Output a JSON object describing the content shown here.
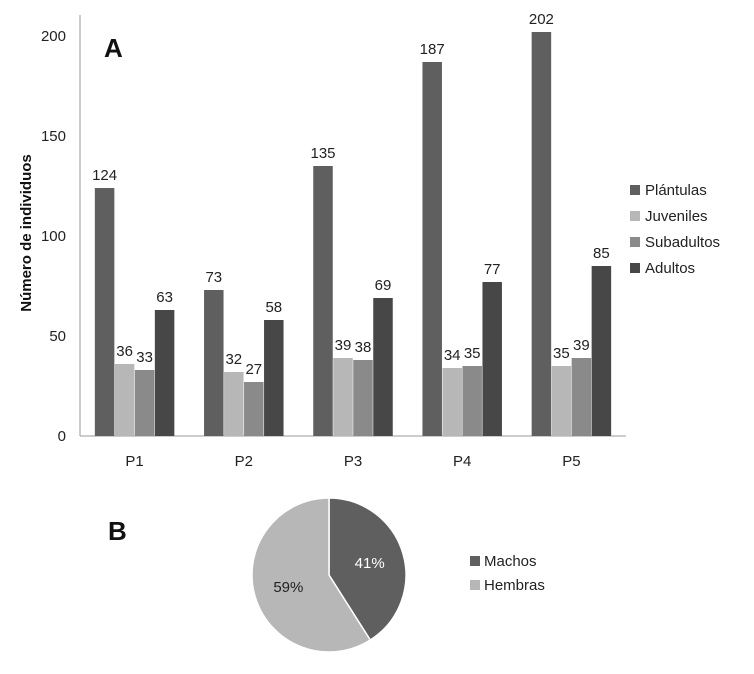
{
  "chart_data": [
    {
      "type": "bar",
      "panel_label": "A",
      "title": "",
      "xlabel": "",
      "ylabel": "Número de individuos",
      "categories": [
        "P1",
        "P2",
        "P3",
        "P4",
        "P5"
      ],
      "series": [
        {
          "name": "Plántulas",
          "values": [
            124,
            73,
            135,
            187,
            202
          ],
          "color": "#5f5f5f"
        },
        {
          "name": "Juveniles",
          "values": [
            36,
            32,
            39,
            34,
            35
          ],
          "color": "#b7b7b7"
        },
        {
          "name": "Subadultos",
          "values": [
            33,
            27,
            38,
            35,
            39
          ],
          "color": "#8a8a8a"
        },
        {
          "name": "Adultos",
          "values": [
            63,
            58,
            69,
            77,
            85
          ],
          "color": "#474747"
        }
      ],
      "ylim": [
        0,
        200
      ],
      "yticks": [
        "0",
        "50",
        "100",
        "150",
        "200"
      ],
      "grid": false,
      "legend_position": "right"
    },
    {
      "type": "pie",
      "panel_label": "B",
      "title": "",
      "slices": [
        {
          "name": "Machos",
          "value": 41,
          "label": "41%",
          "color": "#5f5f5f",
          "label_color": "#ffffff"
        },
        {
          "name": "Hembras",
          "value": 59,
          "label": "59%",
          "color": "#b7b7b7",
          "label_color": "#222222"
        }
      ],
      "legend_position": "right"
    }
  ]
}
